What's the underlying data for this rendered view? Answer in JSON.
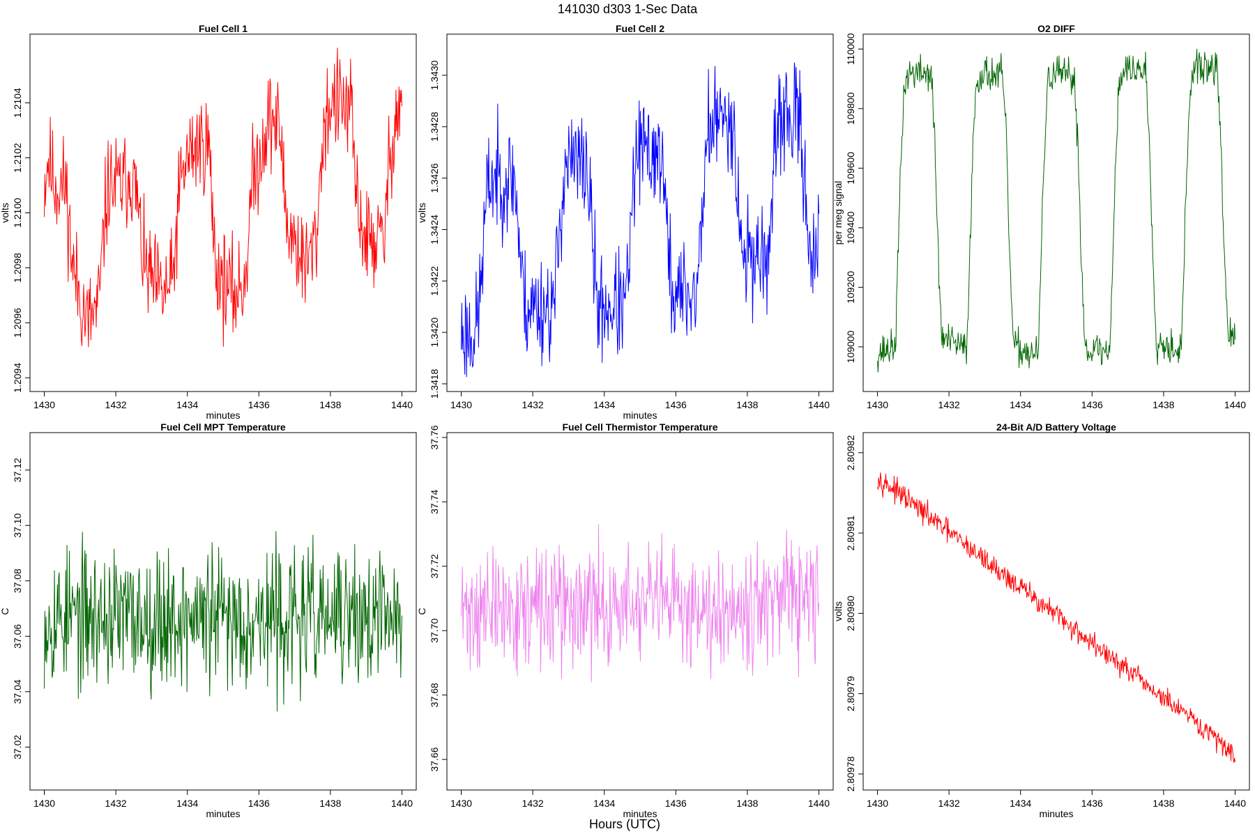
{
  "figure": {
    "title": "141030   d303   1-Sec Data",
    "xlabel": "Hours (UTC)"
  },
  "chart_data": [
    {
      "type": "line",
      "title": "Fuel Cell 1",
      "xlabel": "minutes",
      "ylabel": "volts",
      "color": "#ff0000",
      "xlim": [
        1429.6,
        1440.4
      ],
      "ylim": [
        1.20935,
        1.21065
      ],
      "xticks": [
        "1430",
        "1432",
        "1434",
        "1436",
        "1438",
        "1440"
      ],
      "yticks": [
        "1.2094",
        "1.2096",
        "1.2098",
        "1.2100",
        "1.2102",
        "1.2104"
      ],
      "anchors": [
        [
          1430.0,
          1.2101
        ],
        [
          1430.1,
          1.2102
        ],
        [
          1430.3,
          1.2101
        ],
        [
          1430.6,
          1.2101
        ],
        [
          1430.7,
          1.20995
        ],
        [
          1430.8,
          1.2098
        ],
        [
          1431.0,
          1.2097
        ],
        [
          1431.2,
          1.2096
        ],
        [
          1431.5,
          1.20965
        ],
        [
          1431.6,
          1.2098
        ],
        [
          1431.7,
          1.21
        ],
        [
          1431.8,
          1.2101
        ],
        [
          1432.2,
          1.2101
        ],
        [
          1432.4,
          1.21015
        ],
        [
          1432.6,
          1.21005
        ],
        [
          1432.7,
          1.2099
        ],
        [
          1432.8,
          1.2098
        ],
        [
          1433.0,
          1.20975
        ],
        [
          1433.3,
          1.2097
        ],
        [
          1433.6,
          1.20975
        ],
        [
          1433.7,
          1.20995
        ],
        [
          1433.8,
          1.2101
        ],
        [
          1434.0,
          1.2102
        ],
        [
          1434.3,
          1.21025
        ],
        [
          1434.6,
          1.21025
        ],
        [
          1434.7,
          1.21
        ],
        [
          1434.8,
          1.2098
        ],
        [
          1435.0,
          1.20975
        ],
        [
          1435.3,
          1.2097
        ],
        [
          1435.6,
          1.20975
        ],
        [
          1435.7,
          1.2099
        ],
        [
          1435.8,
          1.2101
        ],
        [
          1436.0,
          1.2102
        ],
        [
          1436.3,
          1.21035
        ],
        [
          1436.6,
          1.2103
        ],
        [
          1436.7,
          1.2101
        ],
        [
          1436.8,
          1.20995
        ],
        [
          1437.0,
          1.2099
        ],
        [
          1437.3,
          1.2098
        ],
        [
          1437.6,
          1.2099
        ],
        [
          1437.7,
          1.2101
        ],
        [
          1437.8,
          1.2103
        ],
        [
          1438.0,
          1.2104
        ],
        [
          1438.3,
          1.2104
        ],
        [
          1438.6,
          1.21035
        ],
        [
          1438.7,
          1.2101
        ],
        [
          1438.8,
          1.21
        ],
        [
          1439.0,
          1.2099
        ],
        [
          1439.3,
          1.2099
        ],
        [
          1439.5,
          1.2099
        ],
        [
          1439.6,
          1.2101
        ],
        [
          1439.8,
          1.21035
        ],
        [
          1440.0,
          1.2104
        ]
      ],
      "noise": 0.00014,
      "n": 600,
      "seed": 11
    },
    {
      "type": "line",
      "title": "Fuel Cell 2",
      "xlabel": "minutes",
      "ylabel": "volts",
      "color": "#0000ff",
      "xlim": [
        1429.6,
        1440.4
      ],
      "ylim": [
        1.34177,
        1.34316
      ],
      "xticks": [
        "1430",
        "1432",
        "1434",
        "1436",
        "1438",
        "1440"
      ],
      "yticks": [
        "1.3418",
        "1.3420",
        "1.3422",
        "1.3424",
        "1.3426",
        "1.3428",
        "1.3430"
      ],
      "anchors": [
        [
          1430.0,
          1.342
        ],
        [
          1430.4,
          1.342
        ],
        [
          1430.5,
          1.3421
        ],
        [
          1430.6,
          1.3423
        ],
        [
          1430.7,
          1.3425
        ],
        [
          1430.8,
          1.3426
        ],
        [
          1431.5,
          1.3426
        ],
        [
          1431.6,
          1.3424
        ],
        [
          1431.7,
          1.3422
        ],
        [
          1431.8,
          1.3421
        ],
        [
          1432.6,
          1.3421
        ],
        [
          1432.7,
          1.3423
        ],
        [
          1432.8,
          1.3425
        ],
        [
          1432.9,
          1.34265
        ],
        [
          1433.5,
          1.34265
        ],
        [
          1433.6,
          1.3425
        ],
        [
          1433.7,
          1.3423
        ],
        [
          1433.8,
          1.3421
        ],
        [
          1434.6,
          1.3421
        ],
        [
          1434.7,
          1.3423
        ],
        [
          1434.8,
          1.3425
        ],
        [
          1434.9,
          1.3427
        ],
        [
          1435.6,
          1.3427
        ],
        [
          1435.7,
          1.3425
        ],
        [
          1435.8,
          1.3423
        ],
        [
          1435.9,
          1.34215
        ],
        [
          1436.6,
          1.34215
        ],
        [
          1436.7,
          1.3424
        ],
        [
          1436.8,
          1.3426
        ],
        [
          1436.9,
          1.3428
        ],
        [
          1437.6,
          1.34285
        ],
        [
          1437.7,
          1.3426
        ],
        [
          1437.8,
          1.3424
        ],
        [
          1437.9,
          1.3423
        ],
        [
          1438.6,
          1.3423
        ],
        [
          1438.7,
          1.3425
        ],
        [
          1438.8,
          1.3427
        ],
        [
          1438.9,
          1.34285
        ],
        [
          1439.5,
          1.3428
        ],
        [
          1439.6,
          1.3426
        ],
        [
          1439.7,
          1.3424
        ],
        [
          1439.9,
          1.34225
        ],
        [
          1440.0,
          1.34235
        ]
      ],
      "noise": 0.00016,
      "n": 600,
      "seed": 23
    },
    {
      "type": "line",
      "title": "O2 DIFF",
      "xlabel": "",
      "ylabel": "per meg signal",
      "color": "#006400",
      "xlim": [
        1429.6,
        1440.4
      ],
      "ylim": [
        108850,
        110050
      ],
      "xticks": [
        "1430",
        "1432",
        "1434",
        "1436",
        "1438",
        "1440"
      ],
      "yticks": [
        "109000",
        "109200",
        "109400",
        "109600",
        "109800",
        "110000"
      ],
      "anchors": [
        [
          1430.0,
          108980
        ],
        [
          1430.5,
          109000
        ],
        [
          1430.55,
          109200
        ],
        [
          1430.65,
          109600
        ],
        [
          1430.75,
          109880
        ],
        [
          1430.9,
          109920
        ],
        [
          1431.5,
          109920
        ],
        [
          1431.6,
          109700
        ],
        [
          1431.7,
          109300
        ],
        [
          1431.8,
          109030
        ],
        [
          1432.5,
          108990
        ],
        [
          1432.55,
          109200
        ],
        [
          1432.65,
          109600
        ],
        [
          1432.75,
          109880
        ],
        [
          1432.9,
          109920
        ],
        [
          1433.5,
          109910
        ],
        [
          1433.6,
          109700
        ],
        [
          1433.7,
          109300
        ],
        [
          1433.8,
          109000
        ],
        [
          1434.5,
          108970
        ],
        [
          1434.55,
          109200
        ],
        [
          1434.65,
          109600
        ],
        [
          1434.75,
          109880
        ],
        [
          1434.9,
          109920
        ],
        [
          1435.5,
          109900
        ],
        [
          1435.6,
          109700
        ],
        [
          1435.7,
          109300
        ],
        [
          1435.8,
          109000
        ],
        [
          1436.5,
          108980
        ],
        [
          1436.55,
          109200
        ],
        [
          1436.65,
          109600
        ],
        [
          1436.75,
          109880
        ],
        [
          1436.9,
          109930
        ],
        [
          1437.5,
          109930
        ],
        [
          1437.6,
          109700
        ],
        [
          1437.7,
          109300
        ],
        [
          1437.8,
          109020
        ],
        [
          1438.5,
          108990
        ],
        [
          1438.55,
          109200
        ],
        [
          1438.65,
          109600
        ],
        [
          1438.75,
          109880
        ],
        [
          1438.9,
          109940
        ],
        [
          1439.5,
          109930
        ],
        [
          1439.6,
          109700
        ],
        [
          1439.7,
          109300
        ],
        [
          1439.8,
          109050
        ],
        [
          1440.0,
          109010
        ]
      ],
      "noise": 45,
      "n": 600,
      "seed": 37
    },
    {
      "type": "line",
      "title": "Fuel Cell MPT Temperature",
      "xlabel": "minutes",
      "ylabel": "C",
      "color": "#006400",
      "xlim": [
        1429.6,
        1440.4
      ],
      "ylim": [
        37.0045,
        37.1335
      ],
      "xticks": [
        "1430",
        "1432",
        "1434",
        "1436",
        "1438",
        "1440"
      ],
      "yticks": [
        "37.02",
        "37.04",
        "37.06",
        "37.08",
        "37.10",
        "37.12"
      ],
      "anchors": [
        [
          1430.0,
          37.067
        ],
        [
          1440.0,
          37.066
        ]
      ],
      "noise": 0.019,
      "n": 600,
      "seed": 53
    },
    {
      "type": "line",
      "title": "Fuel Cell Thermistor Temperature",
      "xlabel": "minutes",
      "ylabel": "C",
      "color": "#ee82ee",
      "xlim": [
        1429.6,
        1440.4
      ],
      "ylim": [
        37.6505,
        37.7615
      ],
      "xticks": [
        "1430",
        "1432",
        "1434",
        "1436",
        "1438",
        "1440"
      ],
      "yticks": [
        "37.66",
        "37.68",
        "37.70",
        "37.72",
        "37.74",
        "37.76"
      ],
      "anchors": [
        [
          1430.0,
          37.706
        ],
        [
          1440.0,
          37.709
        ]
      ],
      "noise": 0.014,
      "n": 600,
      "seed": 71
    },
    {
      "type": "line",
      "title": "24-Bit A/D Battery Voltage",
      "xlabel": "minutes",
      "ylabel": "volts",
      "color": "#ff0000",
      "xlim": [
        1429.6,
        1440.4
      ],
      "ylim": [
        2.809778,
        2.8098225
      ],
      "xticks": [
        "1430",
        "1432",
        "1434",
        "1436",
        "1438",
        "1440"
      ],
      "yticks": [
        "2.80978",
        "2.80979",
        "2.80980",
        "2.80981",
        "2.80982"
      ],
      "anchors": [
        [
          1430.0,
          2.809817
        ],
        [
          1440.0,
          2.8097825
        ]
      ],
      "noise": 1.1e-06,
      "n": 600,
      "seed": 97
    }
  ]
}
